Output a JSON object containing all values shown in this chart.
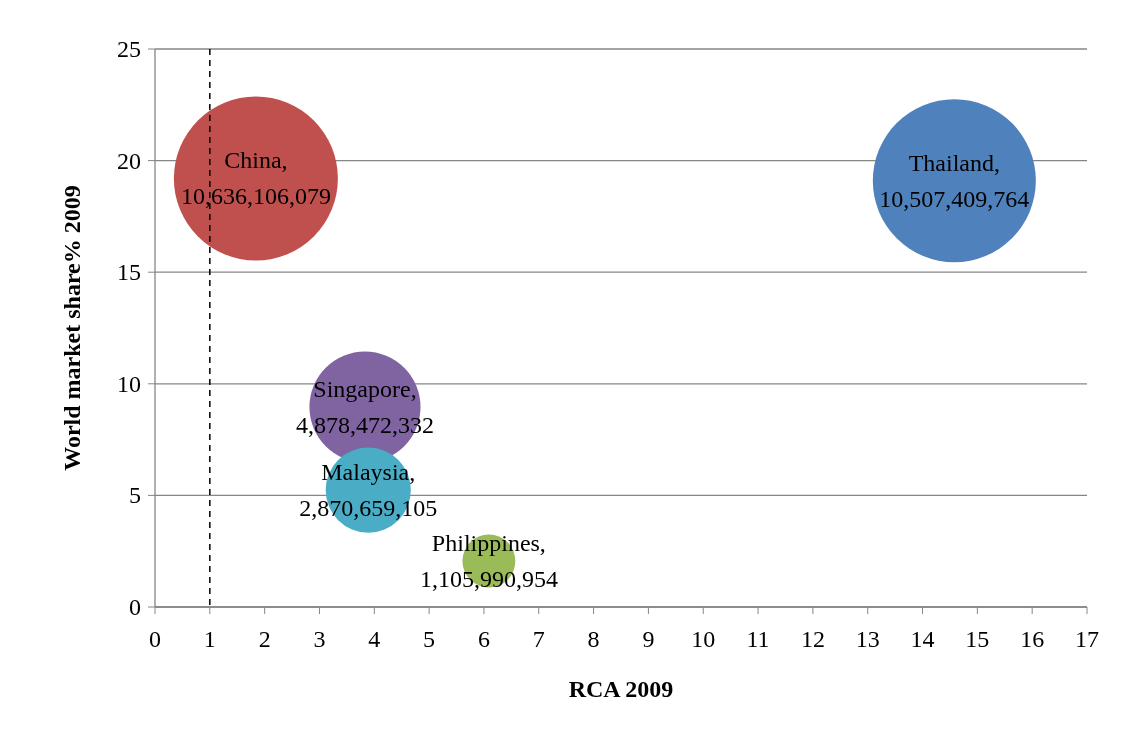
{
  "chart_data": {
    "type": "bubble",
    "xlabel": "RCA 2009",
    "ylabel": "World market share% 2009",
    "xlim": [
      0,
      17
    ],
    "xticks": [
      0,
      1,
      2,
      3,
      4,
      5,
      6,
      7,
      8,
      9,
      10,
      11,
      12,
      13,
      14,
      15,
      16,
      17
    ],
    "ylim": [
      0,
      25
    ],
    "yticks": [
      0,
      5,
      10,
      15,
      20,
      25
    ],
    "grid": "y",
    "ref_lines": [
      {
        "axis": "x",
        "value": 1,
        "color": "#000000",
        "line_style": "dashed"
      }
    ],
    "series": [
      {
        "color": "#c0504d",
        "x": [
          1.84
        ],
        "values": [
          19.2
        ],
        "sizes": [
          1
        ]
      },
      {
        "color": "#4f81bd",
        "x": [
          14.58
        ],
        "values": [
          19.1
        ],
        "sizes": [
          0.988
        ]
      },
      {
        "color": "#8064a2",
        "x": [
          3.83
        ],
        "values": [
          8.96
        ],
        "sizes": [
          0.4587
        ]
      },
      {
        "color": "#4bacc6",
        "x": [
          3.89
        ],
        "values": [
          5.24
        ],
        "sizes": [
          0.2698
        ]
      },
      {
        "color": "#9bbb59",
        "x": [
          6.09
        ],
        "values": [
          2.06
        ],
        "sizes": [
          0.104
        ]
      }
    ],
    "annotations": [
      {
        "text": "China,",
        "x": 1.84,
        "y": 19.2
      },
      {
        "text": "10,636,106,079",
        "x": 1.84,
        "y": 19.2
      },
      {
        "text": "Thailand,",
        "x": 14.58,
        "y": 19.1
      },
      {
        "text": "10,507,409,764",
        "x": 14.58,
        "y": 19.1
      },
      {
        "text": "Singapore,",
        "x": 3.83,
        "y": 8.96
      },
      {
        "text": "4,878,472,332",
        "x": 3.83,
        "y": 8.96
      },
      {
        "text": "Malaysia,",
        "x": 3.89,
        "y": 5.24
      },
      {
        "text": "2,870,659,105",
        "x": 3.89,
        "y": 5.24
      },
      {
        "text": "Philippines,",
        "x": 6.09,
        "y": 2.06
      },
      {
        "text": "1,105,990,954",
        "x": 6.09,
        "y": 2.06
      }
    ]
  }
}
